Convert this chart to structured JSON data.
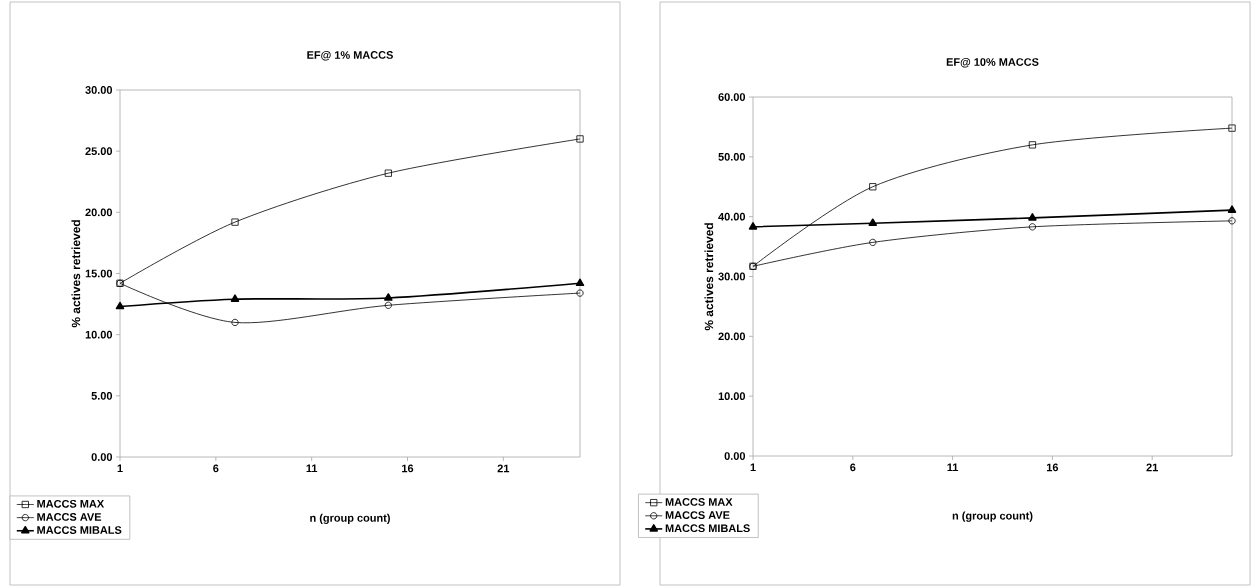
{
  "chart_data": [
    {
      "type": "line",
      "title": "EF@ 1%  MACCS",
      "xlabel": "n (group count)",
      "ylabel": "% actives retrieved",
      "x": [
        1,
        7,
        15,
        25
      ],
      "xlim": [
        1,
        25
      ],
      "xticks": [
        1,
        6,
        11,
        16,
        21
      ],
      "ylim": [
        0,
        30
      ],
      "yticks": [
        {
          "value": 0,
          "label": "0.00"
        },
        {
          "value": 5,
          "label": "5.00"
        },
        {
          "value": 10,
          "label": "10.00"
        },
        {
          "value": 15,
          "label": "15.00"
        },
        {
          "value": 20,
          "label": "20.00"
        },
        {
          "value": 25,
          "label": "25.00"
        },
        {
          "value": 30,
          "label": "30.00"
        }
      ],
      "legend": "bottom left",
      "grid": false,
      "line_style": "solid",
      "series": [
        {
          "name": "MACCS MAX",
          "color": "#000000",
          "marker": "square",
          "values": [
            14.2,
            19.2,
            23.2,
            26.0
          ]
        },
        {
          "name": "MACCS AVE",
          "color": "#000000",
          "marker": "circle",
          "values": [
            14.2,
            11.0,
            12.4,
            13.4
          ]
        },
        {
          "name": "MACCS MIBALS",
          "color": "#000000",
          "marker": "triangle",
          "values": [
            12.3,
            12.9,
            13.0,
            14.2
          ]
        }
      ]
    },
    {
      "type": "line",
      "title": "EF@ 10%  MACCS",
      "xlabel": "n (group count)",
      "ylabel": "% actives retrieved",
      "x": [
        1,
        7,
        15,
        25
      ],
      "xlim": [
        1,
        25
      ],
      "xticks": [
        1,
        6,
        11,
        16,
        21
      ],
      "ylim": [
        0,
        60
      ],
      "yticks": [
        {
          "value": 0,
          "label": "0.00"
        },
        {
          "value": 10,
          "label": "10.00"
        },
        {
          "value": 20,
          "label": "20.00"
        },
        {
          "value": 30,
          "label": "30.00"
        },
        {
          "value": 40,
          "label": "40.00"
        },
        {
          "value": 50,
          "label": "50.00"
        },
        {
          "value": 60,
          "label": "60.00"
        }
      ],
      "legend": "bottom left",
      "grid": false,
      "line_style": "solid",
      "series": [
        {
          "name": "MACCS MAX",
          "color": "#000000",
          "marker": "square",
          "values": [
            31.7,
            45.0,
            52.0,
            54.8
          ]
        },
        {
          "name": "MACCS AVE",
          "color": "#000000",
          "marker": "circle",
          "values": [
            31.7,
            35.7,
            38.3,
            39.3
          ]
        },
        {
          "name": "MACCS MIBALS",
          "color": "#000000",
          "marker": "triangle",
          "values": [
            38.3,
            38.9,
            39.8,
            41.1
          ]
        }
      ]
    }
  ]
}
